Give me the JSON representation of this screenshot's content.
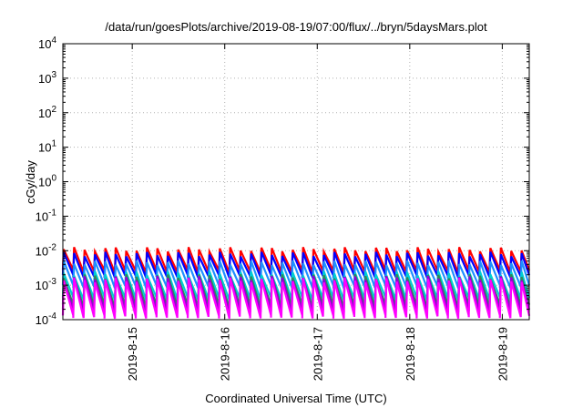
{
  "chart_data": {
    "type": "line",
    "title": "/data/run/goesPlots/archive/2019-08-19/07:00/flux/../bryn/5daysMars.plot",
    "xlabel": "Coordinated Universal Time (UTC)",
    "ylabel": "cGy/day",
    "y_scale": "log",
    "ylim": [
      0.0001,
      10000
    ],
    "y_ticks": [
      {
        "value": 0.0001,
        "base": "10",
        "exp": "-4"
      },
      {
        "value": 0.001,
        "base": "10",
        "exp": "-3"
      },
      {
        "value": 0.01,
        "base": "10",
        "exp": "-2"
      },
      {
        "value": 0.1,
        "base": "10",
        "exp": "-1"
      },
      {
        "value": 1,
        "base": "10",
        "exp": "0"
      },
      {
        "value": 10,
        "base": "10",
        "exp": "1"
      },
      {
        "value": 100,
        "base": "10",
        "exp": "2"
      },
      {
        "value": 1000,
        "base": "10",
        "exp": "3"
      },
      {
        "value": 10000,
        "base": "10",
        "exp": "4"
      }
    ],
    "xlim": [
      "2019-08-14T06:00",
      "2019-08-19T07:00"
    ],
    "x_ticks": [
      {
        "value": "2019-08-15T00:00",
        "label": "2019-8-15"
      },
      {
        "value": "2019-08-16T00:00",
        "label": "2019-8-16"
      },
      {
        "value": "2019-08-17T00:00",
        "label": "2019-8-17"
      },
      {
        "value": "2019-08-18T00:00",
        "label": "2019-8-18"
      },
      {
        "value": "2019-08-19T00:00",
        "label": "2019-8-19"
      }
    ],
    "grid": true,
    "legend": "none",
    "sawtooth": {
      "description": "periodic flare decays, approx. 2.7 h period",
      "period_hours": 2.7,
      "start": "2019-08-14T06:00"
    },
    "series": [
      {
        "color": "#ff0000",
        "peak": 0.011,
        "trough": 0.0025
      },
      {
        "color": "#0000ff",
        "peak": 0.008,
        "trough": 0.0018
      },
      {
        "color": "#1e90ff",
        "peak": 0.0045,
        "trough": 0.0009
      },
      {
        "color": "#00ced1",
        "peak": 0.0022,
        "trough": 0.0004
      },
      {
        "color": "#2e8b57",
        "peak": 0.0018,
        "trough": 0.00025
      },
      {
        "color": "#9400d3",
        "peak": 0.0016,
        "trough": 0.00018
      },
      {
        "color": "#ff00ff",
        "peak": 0.0014,
        "trough": 0.00012
      }
    ]
  }
}
